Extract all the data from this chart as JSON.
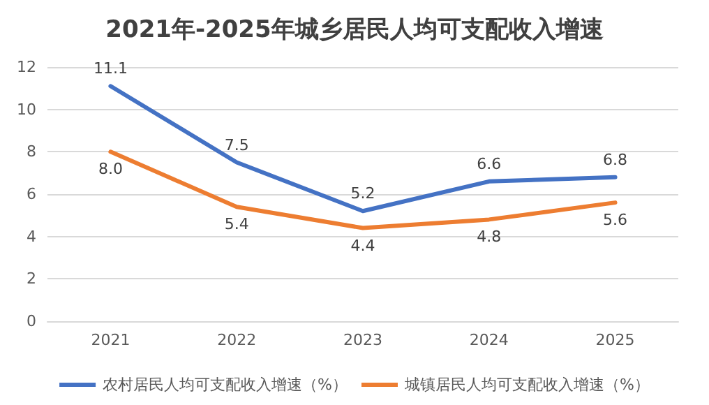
{
  "chart_data": {
    "type": "line",
    "title": "2021年-2025年城乡居民人均可支配收入增速",
    "categories": [
      "2021",
      "2022",
      "2023",
      "2024",
      "2025"
    ],
    "series": [
      {
        "name": "农村居民人均可支配收入增速（%）",
        "color": "#4472c4",
        "values": [
          11.1,
          7.5,
          5.2,
          6.6,
          6.8
        ],
        "value_labels": [
          "11.1",
          "7.5",
          "5.2",
          "6.6",
          "6.8"
        ]
      },
      {
        "name": "城镇居民人均可支配收入增速（%）",
        "color": "#ed7d31",
        "values": [
          8.0,
          5.4,
          4.4,
          4.8,
          5.6
        ],
        "value_labels": [
          "8.0",
          "5.4",
          "4.4",
          "4.8",
          "5.6"
        ]
      }
    ],
    "ylim": [
      0,
      12
    ],
    "yticks": [
      0,
      2,
      4,
      6,
      8,
      10,
      12
    ],
    "grid": "y",
    "legend": "bottom",
    "marker": "none",
    "line_style": "solid"
  }
}
